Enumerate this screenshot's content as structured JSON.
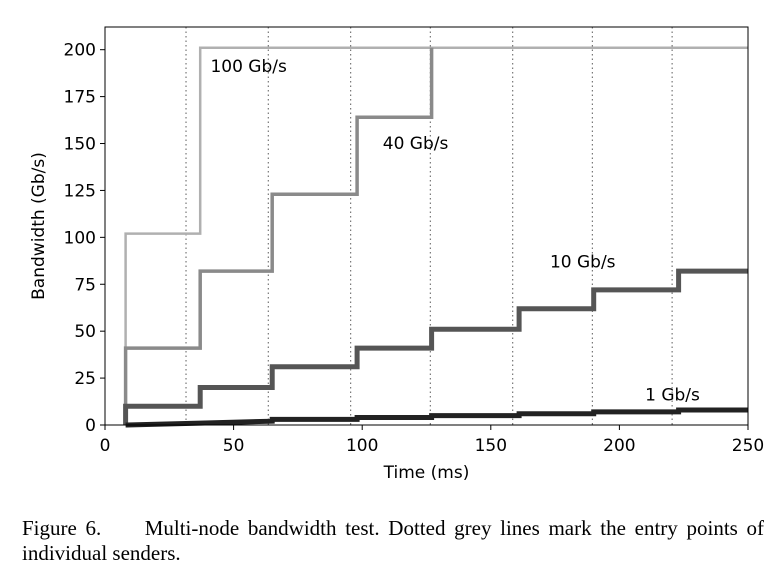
{
  "chart_data": {
    "type": "line",
    "title": "",
    "xlabel": "Time (ms)",
    "ylabel": "Bandwidth (Gb/s)",
    "xlim": [
      0,
      250
    ],
    "ylim": [
      0,
      210
    ],
    "xticks": [
      0,
      50,
      100,
      150,
      200,
      250
    ],
    "yticks": [
      0,
      25,
      50,
      75,
      100,
      125,
      150,
      175,
      200
    ],
    "grid": false,
    "vlines": {
      "style": "dotted grey",
      "x": [
        31.5,
        63.5,
        95.5,
        126.5,
        158.5,
        189.5,
        220.5
      ]
    },
    "series": [
      {
        "name": "100 Gb/s",
        "color": "#b0b0b0",
        "width": 2.5,
        "label_at": [
          41,
          188
        ],
        "points": [
          [
            8,
            0
          ],
          [
            8,
            102
          ],
          [
            37,
            102
          ],
          [
            37,
            201
          ],
          [
            250,
            201
          ]
        ]
      },
      {
        "name": "40 Gb/s",
        "color": "#8a8a8a",
        "width": 3.5,
        "label_at": [
          108,
          147
        ],
        "points": [
          [
            8,
            0
          ],
          [
            8,
            41
          ],
          [
            37,
            41
          ],
          [
            37,
            82
          ],
          [
            65,
            82
          ],
          [
            65,
            123
          ],
          [
            98,
            123
          ],
          [
            98,
            164
          ],
          [
            127,
            164
          ],
          [
            127,
            201
          ]
        ]
      },
      {
        "name": "10 Gb/s",
        "color": "#555555",
        "width": 5,
        "label_at": [
          173,
          84
        ],
        "points": [
          [
            8,
            0
          ],
          [
            8,
            10
          ],
          [
            37,
            10
          ],
          [
            37,
            20
          ],
          [
            65,
            20
          ],
          [
            65,
            31
          ],
          [
            98,
            31
          ],
          [
            98,
            41
          ],
          [
            127,
            41
          ],
          [
            127,
            51
          ],
          [
            161,
            51
          ],
          [
            161,
            62
          ],
          [
            190,
            62
          ],
          [
            190,
            72
          ],
          [
            223,
            72
          ],
          [
            223,
            82
          ],
          [
            250,
            82
          ]
        ]
      },
      {
        "name": "1 Gb/s",
        "color": "#222222",
        "width": 5,
        "label_at": [
          210,
          13
        ],
        "points": [
          [
            8,
            0
          ],
          [
            37,
            1
          ],
          [
            65,
            2
          ],
          [
            65,
            3
          ],
          [
            98,
            3
          ],
          [
            98,
            4
          ],
          [
            127,
            4
          ],
          [
            127,
            5
          ],
          [
            161,
            5
          ],
          [
            161,
            6
          ],
          [
            190,
            6
          ],
          [
            190,
            7
          ],
          [
            223,
            7
          ],
          [
            223,
            8
          ],
          [
            250,
            8
          ]
        ]
      }
    ]
  },
  "caption": {
    "lead": "Figure 6.",
    "text": "Multi-node bandwidth test. Dotted grey lines mark the entry points of individual senders."
  }
}
